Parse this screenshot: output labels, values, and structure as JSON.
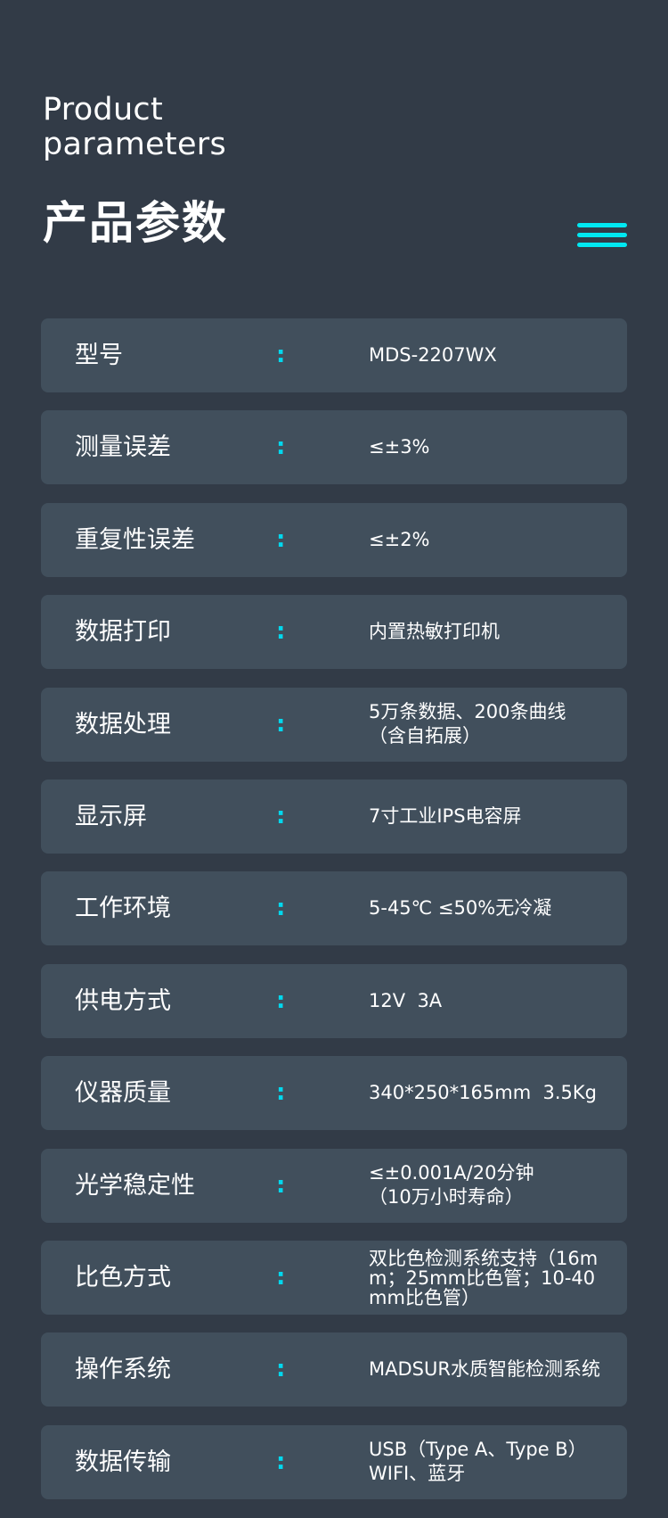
{
  "header": {
    "title_en_line1": "Product",
    "title_en_line2": "parameters",
    "title_cn": "产品参数",
    "menu_icon": "hamburger-menu-icon",
    "accent_color": "#00e8f2"
  },
  "separator": ":",
  "params": [
    {
      "label": "型号",
      "value": [
        "MDS-2207WX"
      ]
    },
    {
      "label": "测量误差",
      "value": [
        "≤±3%"
      ]
    },
    {
      "label": "重复性误差",
      "value": [
        "≤±2%"
      ]
    },
    {
      "label": "数据打印",
      "value": [
        "内置热敏打印机"
      ]
    },
    {
      "label": "数据处理",
      "value": [
        "5万条数据、200条曲线",
        "（含自拓展）"
      ]
    },
    {
      "label": "显示屏",
      "value": [
        "7寸工业IPS电容屏"
      ]
    },
    {
      "label": "工作环境",
      "value": [
        "5-45℃ ≤50%无冷凝"
      ]
    },
    {
      "label": "供电方式",
      "value": [
        "12V  3A"
      ]
    },
    {
      "label": "仪器质量",
      "value": [
        "340*250*165mm  3.5Kg"
      ]
    },
    {
      "label": "光学稳定性",
      "value": [
        "≤±0.001A/20分钟",
        "（10万小时寿命）"
      ]
    },
    {
      "label": "比色方式",
      "value": [
        "双比色检测系统支持（16m",
        "m；25mm比色管；10-40",
        "mm比色管）"
      ]
    },
    {
      "label": "操作系统",
      "value": [
        "MADSUR水质智能检测系统"
      ]
    },
    {
      "label": "数据传输",
      "value": [
        "USB（Type A、Type B）",
        "WIFI、蓝牙"
      ]
    }
  ]
}
